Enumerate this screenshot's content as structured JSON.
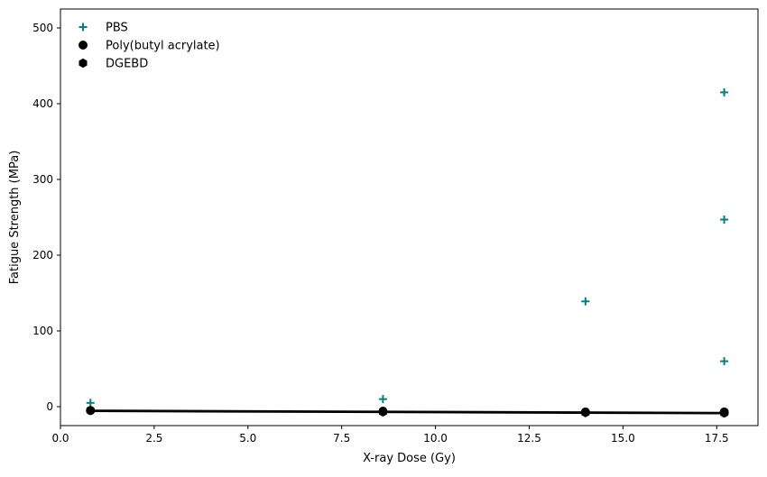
{
  "chart_data": {
    "type": "scatter",
    "title": "",
    "xlabel": "X-ray Dose (Gy)",
    "ylabel": "Fatigue Strength (MPa)",
    "xlim": [
      0.0,
      18.6
    ],
    "ylim": [
      -25,
      525
    ],
    "xticks": [
      0.0,
      2.5,
      5.0,
      7.5,
      10.0,
      12.5,
      15.0,
      17.5
    ],
    "xtick_labels": [
      "0.0",
      "2.5",
      "5.0",
      "7.5",
      "10.0",
      "12.5",
      "15.0",
      "17.5"
    ],
    "yticks": [
      0,
      100,
      200,
      300,
      400,
      500
    ],
    "ytick_labels": [
      "0",
      "100",
      "200",
      "300",
      "400",
      "500"
    ],
    "grid": false,
    "legend_position": "top-left",
    "series": [
      {
        "name": "PBS",
        "marker": "plus",
        "color": "#008080",
        "points": [
          [
            0.8,
            5
          ],
          [
            8.6,
            10
          ],
          [
            14.0,
            139
          ],
          [
            17.7,
            415
          ],
          [
            17.7,
            247
          ],
          [
            17.7,
            60
          ]
        ]
      },
      {
        "name": "Poly(butyl acrylate)",
        "marker": "circle",
        "color": "#000000",
        "points": [
          [
            0.8,
            -5
          ],
          [
            8.6,
            -6
          ],
          [
            14.0,
            -7
          ],
          [
            17.7,
            -7
          ],
          [
            17.7,
            -8
          ],
          [
            17.7,
            -8
          ]
        ]
      },
      {
        "name": "DGEBD",
        "marker": "hexagon",
        "color": "#000000",
        "points": [
          [
            0.8,
            -5
          ],
          [
            8.6,
            -7
          ],
          [
            14.0,
            -8
          ],
          [
            17.7,
            -8
          ],
          [
            17.7,
            -8
          ],
          [
            17.7,
            -8
          ]
        ]
      }
    ],
    "lines": [
      {
        "color": "#000000",
        "points": [
          [
            0.8,
            -5
          ],
          [
            17.7,
            -8
          ]
        ]
      },
      {
        "color": "#000000",
        "points": [
          [
            0.8,
            -6
          ],
          [
            17.7,
            -9
          ]
        ]
      }
    ]
  }
}
